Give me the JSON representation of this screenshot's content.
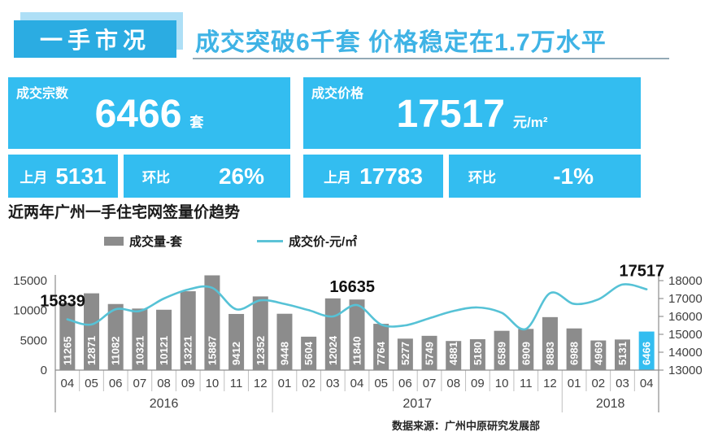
{
  "header": {
    "brand": "一手市况",
    "title": "成交突破6千套 价格稳定在1.7万水平"
  },
  "cards": {
    "volume": {
      "label": "成交宗数",
      "value": "6466",
      "unit": "套",
      "prev_label": "上月",
      "prev_value": "5131",
      "mom_label": "环比",
      "mom_value": "26%"
    },
    "price": {
      "label": "成交价格",
      "value": "17517",
      "unit": "元/m²",
      "prev_label": "上月",
      "prev_value": "17783",
      "mom_label": "环比",
      "mom_value": "-1%"
    }
  },
  "chart": {
    "title": "近两年广州一手住宅网签量价趋势",
    "legend": {
      "volume": "成交量-套",
      "price": "成交价-元/㎡"
    }
  },
  "chart_data": {
    "type": "bar+line",
    "categories": [
      "04",
      "05",
      "06",
      "07",
      "08",
      "09",
      "10",
      "11",
      "12",
      "01",
      "02",
      "03",
      "04",
      "05",
      "06",
      "07",
      "08",
      "09",
      "10",
      "11",
      "12",
      "01",
      "02",
      "03",
      "04"
    ],
    "year_groups": [
      {
        "label": "2016",
        "count": 9
      },
      {
        "label": "2017",
        "count": 12
      },
      {
        "label": "2018",
        "count": 4
      }
    ],
    "series": [
      {
        "name": "成交量-套",
        "type": "bar",
        "color": "#8c8c8c",
        "values": [
          11265,
          12871,
          11082,
          10321,
          10121,
          13221,
          15887,
          9412,
          12352,
          9448,
          5604,
          12024,
          11840,
          7764,
          5277,
          5749,
          4881,
          5180,
          6589,
          6909,
          8883,
          6988,
          4969,
          5131,
          6466
        ]
      },
      {
        "name": "成交价-元/㎡",
        "type": "line",
        "color": "#56c2d6",
        "values": [
          15839,
          15550,
          16400,
          16300,
          17000,
          17500,
          17600,
          16400,
          16900,
          16700,
          16350,
          16000,
          16635,
          15550,
          15500,
          15900,
          16300,
          16500,
          16200,
          15300,
          17300,
          16700,
          16950,
          17783,
          17517
        ],
        "note": "only 15839 / 16635 / 17517 are labeled in the figure; other line values estimated from the plot"
      }
    ],
    "annotations": [
      {
        "index": 0,
        "text": "15839"
      },
      {
        "index": 12,
        "text": "16635"
      },
      {
        "index": 24,
        "text": "17517"
      }
    ],
    "left_axis": {
      "ticks": [
        0,
        5000,
        10000,
        15000
      ],
      "range": [
        0,
        15000
      ]
    },
    "right_axis": {
      "ticks": [
        13000,
        14000,
        15000,
        16000,
        17000,
        18000
      ],
      "range": [
        13000,
        18000
      ]
    },
    "highlight_last_bar": true,
    "highlight_color": "#33bdf0",
    "legend_position": "top",
    "grid": false
  },
  "footer": {
    "source": "数据来源：广州中原研究发展部"
  }
}
